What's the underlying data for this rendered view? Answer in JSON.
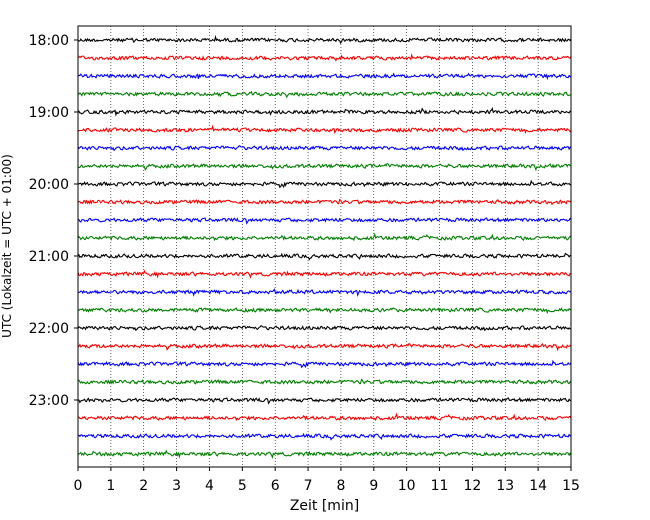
{
  "chart_data": {
    "type": "line",
    "title": "",
    "xlabel": "Zeit  [min]",
    "ylabel": "UTC (Lokalzeit = UTC + 01:00)",
    "xlim": [
      0,
      15
    ],
    "x_ticks": [
      "0",
      "1",
      "2",
      "3",
      "4",
      "5",
      "6",
      "7",
      "8",
      "9",
      "10",
      "11",
      "12",
      "13",
      "14",
      "15"
    ],
    "y_tick_labels": [
      "18:00",
      "19:00",
      "20:00",
      "21:00",
      "22:00",
      "23:00"
    ],
    "y_tick_hours": [
      18,
      19,
      20,
      21,
      22,
      23
    ],
    "grid": {
      "x": true,
      "linestyle": "dotted"
    },
    "legend": "none",
    "trace_colors": [
      "#000000",
      "#ff0000",
      "#0000ff",
      "#008000"
    ],
    "trace_start_hour": 18.0,
    "trace_interval_hours": 0.25,
    "trace_count": 24
  }
}
